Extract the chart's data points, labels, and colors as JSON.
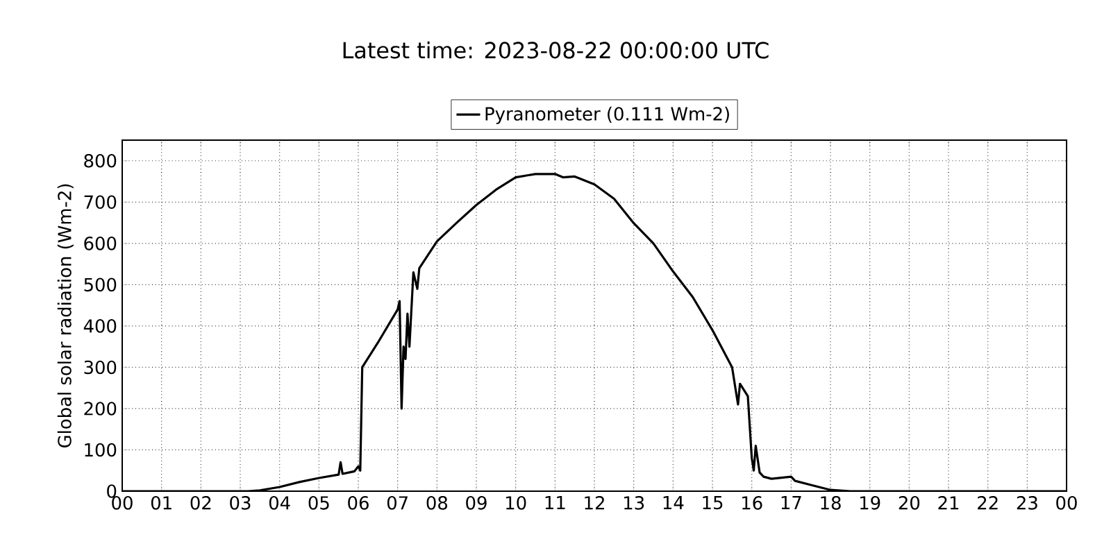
{
  "chart_data": {
    "type": "line",
    "title": "Latest time: 2023-08-22 00:00:00 UTC",
    "ylabel": "Global solar radiation (Wm-2)",
    "series": [
      {
        "name": "Pyranometer (0.111 Wm-2)",
        "color": "#000000",
        "x": [
          0,
          3.2,
          3.5,
          4,
          4.5,
          5,
          5.5,
          5.55,
          5.6,
          5.9,
          6.0,
          6.05,
          6.1,
          6.5,
          7.0,
          7.05,
          7.1,
          7.15,
          7.2,
          7.25,
          7.3,
          7.4,
          7.5,
          7.55,
          8,
          8.5,
          9,
          9.5,
          10,
          10.5,
          11,
          11.2,
          11.5,
          12,
          12.5,
          13,
          13.5,
          14,
          14.5,
          15,
          15.5,
          15.6,
          15.65,
          15.7,
          15.8,
          15.9,
          16,
          16.05,
          16.1,
          16.2,
          16.3,
          16.5,
          17,
          17.1,
          17.5,
          18,
          18.5,
          24
        ],
        "values": [
          0,
          0,
          2,
          10,
          22,
          32,
          40,
          70,
          42,
          48,
          60,
          50,
          300,
          360,
          440,
          460,
          200,
          350,
          320,
          430,
          350,
          530,
          490,
          540,
          605,
          650,
          693,
          730,
          760,
          768,
          768,
          760,
          762,
          743,
          708,
          649,
          600,
          532,
          470,
          390,
          300,
          240,
          210,
          260,
          245,
          230,
          80,
          50,
          110,
          45,
          35,
          30,
          35,
          25,
          15,
          3,
          0,
          0
        ]
      }
    ],
    "xlim": [
      0,
      24
    ],
    "xticks": [
      {
        "value": 0,
        "label": "00"
      },
      {
        "value": 1,
        "label": "01"
      },
      {
        "value": 2,
        "label": "02"
      },
      {
        "value": 3,
        "label": "03"
      },
      {
        "value": 4,
        "label": "04"
      },
      {
        "value": 5,
        "label": "05"
      },
      {
        "value": 6,
        "label": "06"
      },
      {
        "value": 7,
        "label": "07"
      },
      {
        "value": 8,
        "label": "08"
      },
      {
        "value": 9,
        "label": "09"
      },
      {
        "value": 10,
        "label": "10"
      },
      {
        "value": 11,
        "label": "11"
      },
      {
        "value": 12,
        "label": "12"
      },
      {
        "value": 13,
        "label": "13"
      },
      {
        "value": 14,
        "label": "14"
      },
      {
        "value": 15,
        "label": "15"
      },
      {
        "value": 16,
        "label": "16"
      },
      {
        "value": 17,
        "label": "17"
      },
      {
        "value": 18,
        "label": "18"
      },
      {
        "value": 19,
        "label": "19"
      },
      {
        "value": 20,
        "label": "20"
      },
      {
        "value": 21,
        "label": "21"
      },
      {
        "value": 22,
        "label": "22"
      },
      {
        "value": 23,
        "label": "23"
      },
      {
        "value": 24,
        "label": "00"
      }
    ],
    "ylim": [
      0,
      850
    ],
    "yticks": [
      0,
      100,
      200,
      300,
      400,
      500,
      600,
      700,
      800
    ],
    "grid": true,
    "legend": "top",
    "marker": "none",
    "line_style": "solid"
  }
}
